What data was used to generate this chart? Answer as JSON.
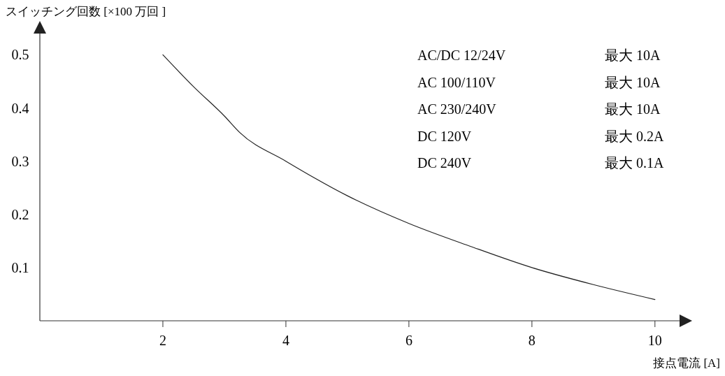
{
  "chart_data": {
    "type": "line",
    "ylabel": "スイッチング回数 [×100 万回 ]",
    "xlabel": "接点電流 [A]",
    "x": [
      2,
      2.5,
      3,
      3.25,
      4,
      5,
      6,
      7,
      8,
      9,
      10
    ],
    "series": [
      {
        "color": "#222222",
        "values": [
          0.5,
          0.44,
          0.385,
          0.354,
          0.3,
          0.235,
          0.183,
          0.14,
          0.1,
          0.068,
          0.04
        ]
      }
    ],
    "xlim": [
      0,
      10.4
    ],
    "ylim": [
      0,
      0.54
    ],
    "xticks": [
      2,
      4,
      6,
      8,
      10
    ],
    "yticks": [
      0.1,
      0.2,
      0.3,
      0.4,
      0.5
    ],
    "annotations": [
      "AC/DC 12/24V",
      "最大 10A",
      "AC 100/110V",
      "最大 10A",
      "AC 230/240V",
      "最大 10A",
      "DC 120V",
      "最大 0.2A",
      "DC 240V",
      "最大 0.1A"
    ]
  }
}
